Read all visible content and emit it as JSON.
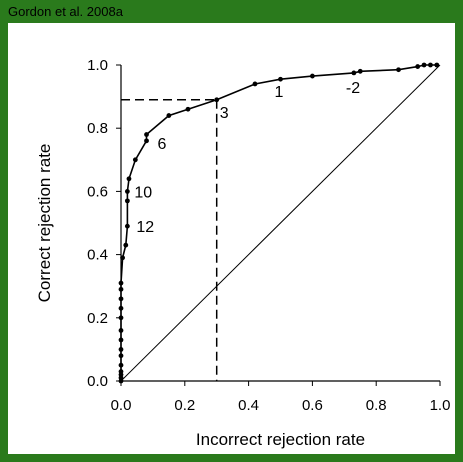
{
  "header": {
    "citation": "Gordon et al. 2008a"
  },
  "colors": {
    "frame": "#2a7a1c",
    "curve": "#000000",
    "background": "#ffffff"
  },
  "chart_data": {
    "type": "line",
    "title": "",
    "xlabel": "Incorrect rejection rate",
    "ylabel": "Correct rejection rate",
    "xlim": [
      0,
      1
    ],
    "ylim": [
      0,
      1
    ],
    "xticks": [
      "0.0",
      "0.2",
      "0.4",
      "0.6",
      "0.8",
      "1.0"
    ],
    "yticks": [
      "0.0",
      "0.2",
      "0.4",
      "0.6",
      "0.8",
      "1.0"
    ],
    "grid": false,
    "series": [
      {
        "type": "line-with-markers",
        "points": [
          [
            0.0,
            0.0
          ],
          [
            0.0,
            0.01
          ],
          [
            0.0,
            0.02
          ],
          [
            0.0,
            0.03
          ],
          [
            0.0,
            0.05
          ],
          [
            0.0,
            0.08
          ],
          [
            0.0,
            0.1
          ],
          [
            0.0,
            0.13
          ],
          [
            0.0,
            0.16
          ],
          [
            0.0,
            0.2
          ],
          [
            0.0,
            0.23
          ],
          [
            0.0,
            0.26
          ],
          [
            0.0,
            0.29
          ],
          [
            0.0,
            0.31
          ],
          [
            0.005,
            0.39
          ],
          [
            0.015,
            0.43
          ],
          [
            0.02,
            0.49
          ],
          [
            0.02,
            0.57
          ],
          [
            0.02,
            0.6
          ],
          [
            0.025,
            0.64
          ],
          [
            0.045,
            0.7
          ],
          [
            0.08,
            0.76
          ],
          [
            0.08,
            0.78
          ],
          [
            0.15,
            0.84
          ],
          [
            0.21,
            0.86
          ],
          [
            0.3,
            0.89
          ],
          [
            0.42,
            0.94
          ],
          [
            0.5,
            0.955
          ],
          [
            0.6,
            0.965
          ],
          [
            0.73,
            0.975
          ],
          [
            0.75,
            0.98
          ],
          [
            0.87,
            0.985
          ],
          [
            0.93,
            0.995
          ],
          [
            0.95,
            1.0
          ],
          [
            0.97,
            1.0
          ],
          [
            0.99,
            1.0
          ]
        ]
      }
    ],
    "reference_line": {
      "from": [
        0,
        0
      ],
      "to": [
        1,
        1
      ]
    },
    "highlight_point": [
      0.3,
      0.89
    ],
    "annotations": [
      {
        "text": "3",
        "x": 0.3,
        "y": 0.89
      },
      {
        "text": "1",
        "x": 0.5,
        "y": 0.955
      },
      {
        "text": "-2",
        "x": 0.73,
        "y": 0.975
      },
      {
        "text": "6",
        "x": 0.08,
        "y": 0.76
      },
      {
        "text": "10",
        "x": 0.02,
        "y": 0.6
      },
      {
        "text": "12",
        "x": 0.02,
        "y": 0.49
      }
    ]
  }
}
